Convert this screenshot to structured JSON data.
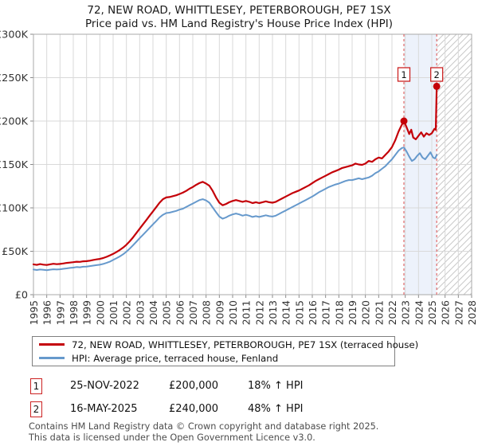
{
  "title": {
    "line1": "72, NEW ROAD, WHITTLESEY, PETERBOROUGH, PE7 1SX",
    "line2": "Price paid vs. HM Land Registry's House Price Index (HPI)"
  },
  "colors": {
    "property": "#c40008",
    "hpi": "#6699cc",
    "sale_dash": "#e06a6a",
    "sale_dot": "#c40008",
    "marker_box_border": "#cc2222",
    "band_fill": "rgba(110,145,220,0.12)",
    "grid": "#d9d9d9",
    "spine": "#a9a9a9",
    "tick": "#8a8a8a",
    "hatch_line": "#c9c9c9",
    "axis_text": "#333333"
  },
  "chart_data": {
    "type": "line",
    "title": "Price paid vs. HM Land Registry's House Price Index (HPI)",
    "xlabel": "",
    "ylabel": "",
    "x_axis": {
      "min": 1995,
      "max": 2028,
      "tick_years": [
        1995,
        1996,
        1997,
        1998,
        1999,
        2000,
        2001,
        2002,
        2003,
        2004,
        2005,
        2006,
        2007,
        2008,
        2009,
        2010,
        2011,
        2012,
        2013,
        2014,
        2015,
        2016,
        2017,
        2018,
        2019,
        2020,
        2021,
        2022,
        2023,
        2024,
        2025,
        2026,
        2027,
        2028
      ]
    },
    "y_axis": {
      "min_k": 0,
      "max_k": 300,
      "ticks": [
        {
          "k": 0,
          "label": "£0"
        },
        {
          "k": 50,
          "label": "£50K"
        },
        {
          "k": 100,
          "label": "£100K"
        },
        {
          "k": 150,
          "label": "£150K"
        },
        {
          "k": 200,
          "label": "£200K"
        },
        {
          "k": 250,
          "label": "£250K"
        },
        {
          "k": 300,
          "label": "£300K"
        }
      ]
    },
    "grid": true,
    "legend_position": "below",
    "series": [
      {
        "name": "72, NEW ROAD, WHITTLESEY, PETERBOROUGH, PE7 1SX (terraced house)",
        "color_key": "property",
        "stroke_width": 2.2,
        "unit": "GBP thousands",
        "points": [
          [
            1995.0,
            35.0
          ],
          [
            1995.25,
            34.3
          ],
          [
            1995.5,
            35.2
          ],
          [
            1995.75,
            34.6
          ],
          [
            1996.0,
            34.2
          ],
          [
            1996.25,
            35.0
          ],
          [
            1996.5,
            35.6
          ],
          [
            1996.75,
            35.1
          ],
          [
            1997.0,
            35.4
          ],
          [
            1997.25,
            36.0
          ],
          [
            1997.5,
            36.6
          ],
          [
            1997.75,
            37.0
          ],
          [
            1998.0,
            37.4
          ],
          [
            1998.25,
            38.0
          ],
          [
            1998.5,
            37.8
          ],
          [
            1998.75,
            38.4
          ],
          [
            1999.0,
            38.6
          ],
          [
            1999.25,
            39.2
          ],
          [
            1999.5,
            40.0
          ],
          [
            1999.75,
            40.6
          ],
          [
            2000.0,
            41.2
          ],
          [
            2000.25,
            42.2
          ],
          [
            2000.5,
            43.6
          ],
          [
            2000.75,
            45.2
          ],
          [
            2001.0,
            47.0
          ],
          [
            2001.25,
            49.2
          ],
          [
            2001.5,
            51.5
          ],
          [
            2001.75,
            54.2
          ],
          [
            2002.0,
            57.5
          ],
          [
            2002.25,
            61.5
          ],
          [
            2002.5,
            66.0
          ],
          [
            2002.75,
            71.0
          ],
          [
            2003.0,
            76.0
          ],
          [
            2003.25,
            81.0
          ],
          [
            2003.5,
            86.0
          ],
          [
            2003.75,
            91.0
          ],
          [
            2004.0,
            96.0
          ],
          [
            2004.25,
            101.0
          ],
          [
            2004.5,
            106.0
          ],
          [
            2004.75,
            110.0
          ],
          [
            2005.0,
            112.0
          ],
          [
            2005.25,
            112.5
          ],
          [
            2005.5,
            113.5
          ],
          [
            2005.75,
            114.5
          ],
          [
            2006.0,
            116.0
          ],
          [
            2006.25,
            117.5
          ],
          [
            2006.5,
            119.5
          ],
          [
            2006.75,
            122.0
          ],
          [
            2007.0,
            124.0
          ],
          [
            2007.25,
            126.5
          ],
          [
            2007.5,
            128.5
          ],
          [
            2007.75,
            130.0
          ],
          [
            2008.0,
            128.0
          ],
          [
            2008.25,
            125.5
          ],
          [
            2008.5,
            119.5
          ],
          [
            2008.75,
            112.0
          ],
          [
            2009.0,
            106.0
          ],
          [
            2009.25,
            103.0
          ],
          [
            2009.5,
            104.5
          ],
          [
            2009.75,
            106.5
          ],
          [
            2010.0,
            108.0
          ],
          [
            2010.25,
            109.0
          ],
          [
            2010.5,
            108.0
          ],
          [
            2010.75,
            107.0
          ],
          [
            2011.0,
            108.0
          ],
          [
            2011.25,
            107.0
          ],
          [
            2011.5,
            105.5
          ],
          [
            2011.75,
            106.5
          ],
          [
            2012.0,
            105.5
          ],
          [
            2012.25,
            106.5
          ],
          [
            2012.5,
            107.5
          ],
          [
            2012.75,
            106.5
          ],
          [
            2013.0,
            106.0
          ],
          [
            2013.25,
            107.0
          ],
          [
            2013.5,
            109.0
          ],
          [
            2013.75,
            111.0
          ],
          [
            2014.0,
            113.0
          ],
          [
            2014.25,
            115.0
          ],
          [
            2014.5,
            117.0
          ],
          [
            2014.75,
            118.5
          ],
          [
            2015.0,
            120.0
          ],
          [
            2015.25,
            122.0
          ],
          [
            2015.5,
            124.0
          ],
          [
            2015.75,
            126.0
          ],
          [
            2016.0,
            128.5
          ],
          [
            2016.25,
            131.0
          ],
          [
            2016.5,
            133.0
          ],
          [
            2016.75,
            135.0
          ],
          [
            2017.0,
            137.0
          ],
          [
            2017.25,
            139.0
          ],
          [
            2017.5,
            141.0
          ],
          [
            2017.75,
            142.5
          ],
          [
            2018.0,
            144.0
          ],
          [
            2018.25,
            146.0
          ],
          [
            2018.5,
            147.0
          ],
          [
            2018.75,
            148.0
          ],
          [
            2019.0,
            149.0
          ],
          [
            2019.25,
            151.0
          ],
          [
            2019.5,
            150.0
          ],
          [
            2019.75,
            149.5
          ],
          [
            2020.0,
            151.0
          ],
          [
            2020.25,
            154.0
          ],
          [
            2020.5,
            153.0
          ],
          [
            2020.75,
            156.0
          ],
          [
            2021.0,
            158.0
          ],
          [
            2021.25,
            157.0
          ],
          [
            2021.5,
            161.0
          ],
          [
            2021.75,
            165.0
          ],
          [
            2022.0,
            170.0
          ],
          [
            2022.25,
            178.0
          ],
          [
            2022.5,
            188.0
          ],
          [
            2022.75,
            196.0
          ],
          [
            2022.9,
            200.0
          ],
          [
            2023.1,
            193.0
          ],
          [
            2023.3,
            185.0
          ],
          [
            2023.45,
            190.0
          ],
          [
            2023.6,
            181.0
          ],
          [
            2023.8,
            179.0
          ],
          [
            2024.0,
            183.0
          ],
          [
            2024.2,
            187.0
          ],
          [
            2024.4,
            182.0
          ],
          [
            2024.6,
            186.0
          ],
          [
            2024.8,
            184.0
          ],
          [
            2025.0,
            186.0
          ],
          [
            2025.2,
            191.0
          ],
          [
            2025.3,
            190.0
          ],
          [
            2025.37,
            240.0
          ]
        ]
      },
      {
        "name": "HPI: Average price, terraced house, Fenland",
        "color_key": "hpi",
        "stroke_width": 2.0,
        "unit": "GBP thousands",
        "points": [
          [
            1995.0,
            29.0
          ],
          [
            1995.25,
            28.4
          ],
          [
            1995.5,
            29.0
          ],
          [
            1995.75,
            28.6
          ],
          [
            1996.0,
            28.3
          ],
          [
            1996.25,
            28.8
          ],
          [
            1996.5,
            29.3
          ],
          [
            1996.75,
            29.0
          ],
          [
            1997.0,
            29.3
          ],
          [
            1997.25,
            29.8
          ],
          [
            1997.5,
            30.3
          ],
          [
            1997.75,
            30.8
          ],
          [
            1998.0,
            31.2
          ],
          [
            1998.25,
            31.8
          ],
          [
            1998.5,
            31.6
          ],
          [
            1998.75,
            32.2
          ],
          [
            1999.0,
            32.4
          ],
          [
            1999.25,
            32.9
          ],
          [
            1999.5,
            33.5
          ],
          [
            1999.75,
            34.0
          ],
          [
            2000.0,
            34.5
          ],
          [
            2000.25,
            35.4
          ],
          [
            2000.5,
            36.6
          ],
          [
            2000.75,
            38.0
          ],
          [
            2001.0,
            40.0
          ],
          [
            2001.25,
            42.0
          ],
          [
            2001.5,
            44.0
          ],
          [
            2001.75,
            46.5
          ],
          [
            2002.0,
            49.5
          ],
          [
            2002.25,
            53.0
          ],
          [
            2002.5,
            57.0
          ],
          [
            2002.75,
            61.0
          ],
          [
            2003.0,
            65.0
          ],
          [
            2003.25,
            69.0
          ],
          [
            2003.5,
            73.0
          ],
          [
            2003.75,
            77.0
          ],
          [
            2004.0,
            81.0
          ],
          [
            2004.25,
            85.0
          ],
          [
            2004.5,
            89.0
          ],
          [
            2004.75,
            92.0
          ],
          [
            2005.0,
            94.0
          ],
          [
            2005.25,
            94.5
          ],
          [
            2005.5,
            95.5
          ],
          [
            2005.75,
            96.5
          ],
          [
            2006.0,
            98.0
          ],
          [
            2006.25,
            99.0
          ],
          [
            2006.5,
            101.0
          ],
          [
            2006.75,
            103.0
          ],
          [
            2007.0,
            105.0
          ],
          [
            2007.25,
            107.0
          ],
          [
            2007.5,
            109.0
          ],
          [
            2007.75,
            110.0
          ],
          [
            2008.0,
            108.5
          ],
          [
            2008.25,
            106.0
          ],
          [
            2008.5,
            100.5
          ],
          [
            2008.75,
            95.0
          ],
          [
            2009.0,
            90.0
          ],
          [
            2009.25,
            87.5
          ],
          [
            2009.5,
            89.0
          ],
          [
            2009.75,
            91.0
          ],
          [
            2010.0,
            92.5
          ],
          [
            2010.25,
            93.5
          ],
          [
            2010.5,
            92.5
          ],
          [
            2010.75,
            91.0
          ],
          [
            2011.0,
            92.0
          ],
          [
            2011.25,
            91.0
          ],
          [
            2011.5,
            89.5
          ],
          [
            2011.75,
            90.5
          ],
          [
            2012.0,
            89.5
          ],
          [
            2012.25,
            90.5
          ],
          [
            2012.5,
            91.5
          ],
          [
            2012.75,
            90.5
          ],
          [
            2013.0,
            90.0
          ],
          [
            2013.25,
            91.0
          ],
          [
            2013.5,
            93.0
          ],
          [
            2013.75,
            95.0
          ],
          [
            2014.0,
            97.0
          ],
          [
            2014.25,
            99.0
          ],
          [
            2014.5,
            101.0
          ],
          [
            2014.75,
            103.0
          ],
          [
            2015.0,
            105.0
          ],
          [
            2015.25,
            107.0
          ],
          [
            2015.5,
            109.0
          ],
          [
            2015.75,
            111.0
          ],
          [
            2016.0,
            113.0
          ],
          [
            2016.25,
            115.5
          ],
          [
            2016.5,
            118.0
          ],
          [
            2016.75,
            120.0
          ],
          [
            2017.0,
            122.0
          ],
          [
            2017.25,
            124.0
          ],
          [
            2017.5,
            125.5
          ],
          [
            2017.75,
            127.0
          ],
          [
            2018.0,
            128.0
          ],
          [
            2018.25,
            129.5
          ],
          [
            2018.5,
            131.0
          ],
          [
            2018.75,
            132.0
          ],
          [
            2019.0,
            132.0
          ],
          [
            2019.25,
            133.0
          ],
          [
            2019.5,
            134.0
          ],
          [
            2019.75,
            133.0
          ],
          [
            2020.0,
            134.0
          ],
          [
            2020.25,
            135.0
          ],
          [
            2020.5,
            137.0
          ],
          [
            2020.75,
            140.0
          ],
          [
            2021.0,
            142.0
          ],
          [
            2021.25,
            145.0
          ],
          [
            2021.5,
            148.0
          ],
          [
            2021.75,
            152.0
          ],
          [
            2022.0,
            156.0
          ],
          [
            2022.25,
            161.0
          ],
          [
            2022.5,
            166.0
          ],
          [
            2022.75,
            169.0
          ],
          [
            2022.9,
            169.5
          ],
          [
            2023.1,
            165.0
          ],
          [
            2023.3,
            159.0
          ],
          [
            2023.5,
            154.0
          ],
          [
            2023.7,
            156.0
          ],
          [
            2023.9,
            160.0
          ],
          [
            2024.1,
            163.0
          ],
          [
            2024.3,
            158.0
          ],
          [
            2024.5,
            156.0
          ],
          [
            2024.7,
            160.0
          ],
          [
            2024.9,
            164.0
          ],
          [
            2025.1,
            158.0
          ],
          [
            2025.25,
            157.0
          ],
          [
            2025.37,
            161.0
          ]
        ]
      }
    ],
    "sales": [
      {
        "label": "1",
        "date": "25-NOV-2022",
        "year": 2022.9,
        "price_k": 200,
        "hpi_diff": "18% ↑ HPI"
      },
      {
        "label": "2",
        "date": "16-MAY-2025",
        "year": 2025.37,
        "price_k": 240,
        "hpi_diff": "48% ↑ HPI"
      }
    ],
    "shaded_band": {
      "from_year": 2022.9,
      "to_year": 2025.37
    },
    "future_hatch": {
      "from_year": 2025.37,
      "to_year": 2028
    }
  },
  "legend": {
    "items": [
      {
        "label": "72, NEW ROAD, WHITTLESEY, PETERBOROUGH, PE7 1SX (terraced house)",
        "color_key": "property"
      },
      {
        "label": "HPI: Average price, terraced house, Fenland",
        "color_key": "hpi"
      }
    ]
  },
  "transactions": [
    {
      "num": "1",
      "date": "25-NOV-2022",
      "price": "£200,000",
      "hpi": "18% ↑ HPI"
    },
    {
      "num": "2",
      "date": "16-MAY-2025",
      "price": "£240,000",
      "hpi": "48% ↑ HPI"
    }
  ],
  "footer": {
    "line1": "Contains HM Land Registry data © Crown copyright and database right 2025.",
    "line2": "This data is licensed under the Open Government Licence v3.0."
  }
}
